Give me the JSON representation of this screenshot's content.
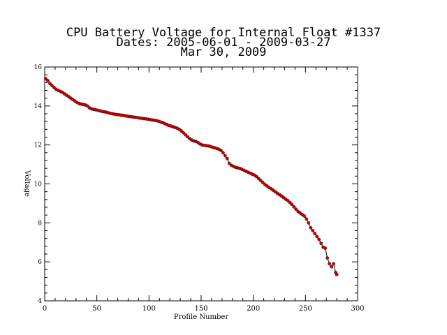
{
  "chart_data": {
    "type": "scatter",
    "title_lines": [
      "CPU Battery Voltage for Internal Float #1337",
      "Dates:  2005-06-01 -  2009-03-27",
      "Mar 30, 2009"
    ],
    "xlabel": "Profile Number",
    "ylabel": "Voltage",
    "xlim": [
      0,
      300
    ],
    "ylim": [
      4,
      16
    ],
    "x_ticks": [
      0,
      50,
      100,
      150,
      200,
      250,
      300
    ],
    "y_ticks": [
      4,
      6,
      8,
      10,
      12,
      14,
      16
    ],
    "line_color": "#000000",
    "marker_color": "#cc0000",
    "series": [
      {
        "x": [
          1,
          3,
          5,
          7,
          9,
          11,
          13,
          15,
          17,
          19,
          21,
          23,
          25,
          27,
          29,
          31,
          33,
          35,
          37,
          39,
          41,
          43,
          45,
          47,
          49,
          51,
          53,
          55,
          57,
          59,
          61,
          63,
          65,
          67,
          69,
          71,
          73,
          75,
          77,
          79,
          81,
          83,
          85,
          87,
          89,
          91,
          93,
          95,
          97,
          99,
          101,
          103,
          105,
          107,
          109,
          111,
          113,
          115,
          117,
          119,
          121,
          123,
          125,
          127,
          129,
          131,
          133,
          135,
          137,
          139,
          141,
          143,
          145,
          147,
          149,
          151,
          153,
          155,
          157,
          159,
          161,
          163,
          165,
          167,
          169,
          171,
          173,
          175,
          177,
          179,
          181,
          183,
          185,
          187,
          189,
          191,
          193,
          195,
          197,
          199,
          201,
          203,
          205,
          207,
          209,
          211,
          213,
          215,
          217,
          219,
          221,
          223,
          225,
          227,
          229,
          231,
          233,
          235,
          237,
          239,
          241,
          243,
          245,
          247,
          249,
          251,
          253,
          255,
          257,
          259,
          261,
          263,
          265,
          267,
          269,
          271,
          273,
          275,
          277,
          279,
          280
        ],
        "y": [
          15.4,
          15.3,
          15.15,
          15.05,
          14.95,
          14.85,
          14.8,
          14.75,
          14.7,
          14.62,
          14.55,
          14.48,
          14.4,
          14.33,
          14.25,
          14.18,
          14.12,
          14.1,
          14.08,
          14.05,
          14.0,
          13.9,
          13.85,
          13.82,
          13.8,
          13.78,
          13.75,
          13.72,
          13.7,
          13.68,
          13.65,
          13.62,
          13.6,
          13.58,
          13.56,
          13.55,
          13.53,
          13.52,
          13.5,
          13.48,
          13.46,
          13.45,
          13.43,
          13.42,
          13.4,
          13.38,
          13.37,
          13.35,
          13.34,
          13.32,
          13.3,
          13.28,
          13.27,
          13.25,
          13.22,
          13.18,
          13.15,
          13.1,
          13.05,
          13.0,
          12.97,
          12.93,
          12.9,
          12.86,
          12.8,
          12.72,
          12.62,
          12.52,
          12.42,
          12.32,
          12.25,
          12.2,
          12.18,
          12.12,
          12.05,
          12.0,
          11.98,
          11.96,
          11.95,
          11.92,
          11.88,
          11.85,
          11.82,
          11.78,
          11.72,
          11.6,
          11.45,
          11.3,
          11.05,
          10.95,
          10.9,
          10.85,
          10.82,
          10.8,
          10.75,
          10.7,
          10.65,
          10.6,
          10.55,
          10.5,
          10.45,
          10.38,
          10.28,
          10.18,
          10.08,
          9.98,
          9.9,
          9.82,
          9.75,
          9.68,
          9.6,
          9.52,
          9.45,
          9.38,
          9.3,
          9.22,
          9.15,
          9.05,
          8.95,
          8.82,
          8.7,
          8.58,
          8.5,
          8.42,
          8.35,
          8.2,
          8.0,
          7.75,
          7.6,
          7.45,
          7.3,
          7.15,
          6.95,
          6.75,
          6.7,
          6.2,
          5.9,
          5.75,
          5.9,
          5.45,
          5.35
        ]
      }
    ]
  }
}
